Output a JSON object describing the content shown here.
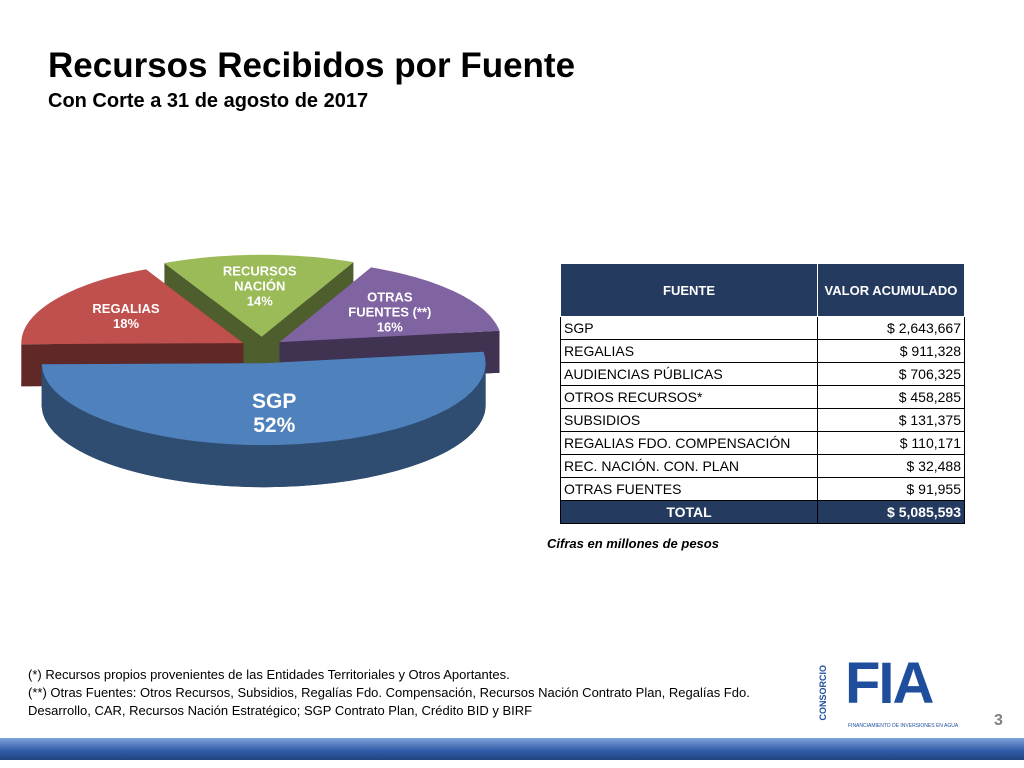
{
  "header": {
    "title": "Recursos Recibidos por Fuente",
    "subtitle": "Con Corte a 31 de agosto de 2017"
  },
  "chart_data": {
    "type": "pie",
    "categories": [
      "SGP",
      "REGALIAS",
      "RECURSOS NACIÓN",
      "OTRAS FUENTES (**)"
    ],
    "values": [
      52,
      18,
      14,
      16
    ],
    "value_labels": [
      "52%",
      "18%",
      "14%",
      "16%"
    ],
    "colors": [
      "#4f81bd",
      "#c0504d",
      "#9bbb59",
      "#8064a2"
    ]
  },
  "table": {
    "header": [
      "FUENTE",
      "VALOR ACUMULADO"
    ],
    "rows": [
      [
        "SGP",
        "$ 2,643,667"
      ],
      [
        "REGALIAS",
        "$ 911,328"
      ],
      [
        "AUDIENCIAS PÚBLICAS",
        "$ 706,325"
      ],
      [
        "OTROS RECURSOS*",
        "$ 458,285"
      ],
      [
        "SUBSIDIOS",
        "$ 131,375"
      ],
      [
        "REGALIAS FDO. COMPENSACIÓN",
        "$ 110,171"
      ],
      [
        "REC. NACIÓN.  CON. PLAN",
        "$ 32,488"
      ],
      [
        "OTRAS FUENTES",
        "$ 91,955"
      ]
    ],
    "total": [
      "TOTAL",
      "$ 5,085,593"
    ],
    "note": "Cifras en millones de pesos"
  },
  "footnotes": [
    "(*) Recursos propios provenientes de  las Entidades Territoriales y Otros Aportantes.",
    "(**) Otras Fuentes: Otros Recursos, Subsidios, Regalías Fdo. Compensación, Recursos Nación Contrato Plan, Regalías Fdo. Desarrollo, CAR, Recursos Nación Estratégico; SGP Contrato Plan, Crédito BID y BIRF"
  ],
  "logo": {
    "side": "CONSORCIO",
    "name": "FIA",
    "tagline": "FINANCIAMIENTO DE INVERSIONES EN AGUA"
  },
  "page_number": "3"
}
